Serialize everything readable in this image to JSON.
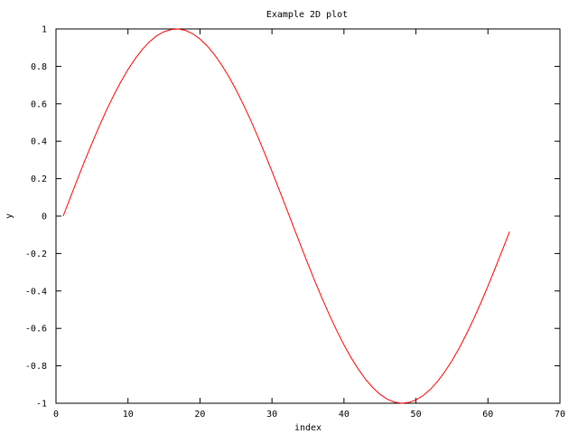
{
  "chart_data": {
    "type": "line",
    "title": "Example 2D plot",
    "xlabel": "index",
    "ylabel": "y",
    "xlim": [
      0,
      70
    ],
    "ylim": [
      -1,
      1
    ],
    "xticks": [
      0,
      10,
      20,
      30,
      40,
      50,
      60,
      70
    ],
    "xtick_labels": [
      "0",
      "10",
      "20",
      "30",
      "40",
      "50",
      "60",
      "70"
    ],
    "yticks": [
      -1,
      -0.8,
      -0.6,
      -0.4,
      -0.2,
      0,
      0.2,
      0.4,
      0.6,
      0.8,
      1
    ],
    "ytick_labels": [
      "-1",
      "-0.8",
      "-0.6",
      "-0.4",
      "-0.2",
      "0",
      "0.2",
      "0.4",
      "0.6",
      "0.8",
      "1"
    ],
    "grid": false,
    "legend": "none",
    "series": [
      {
        "color": "#ff0000",
        "x": [
          1,
          2,
          3,
          4,
          5,
          6,
          7,
          8,
          9,
          10,
          11,
          12,
          13,
          14,
          15,
          16,
          17,
          18,
          19,
          20,
          21,
          22,
          23,
          24,
          25,
          26,
          27,
          28,
          29,
          30,
          31,
          32,
          33,
          34,
          35,
          36,
          37,
          38,
          39,
          40,
          41,
          42,
          43,
          44,
          45,
          46,
          47,
          48,
          49,
          50,
          51,
          52,
          53,
          54,
          55,
          56,
          57,
          58,
          59,
          60,
          61,
          62,
          63
        ],
        "values": [
          0,
          0.1,
          0.199,
          0.296,
          0.389,
          0.479,
          0.565,
          0.644,
          0.717,
          0.783,
          0.841,
          0.891,
          0.932,
          0.964,
          0.985,
          0.997,
          1.0,
          0.992,
          0.974,
          0.946,
          0.909,
          0.863,
          0.808,
          0.746,
          0.675,
          0.598,
          0.516,
          0.427,
          0.335,
          0.239,
          0.141,
          0.042,
          -0.058,
          -0.158,
          -0.256,
          -0.351,
          -0.443,
          -0.53,
          -0.612,
          -0.688,
          -0.757,
          -0.818,
          -0.872,
          -0.916,
          -0.952,
          -0.978,
          -0.994,
          -1.0,
          -0.996,
          -0.982,
          -0.959,
          -0.926,
          -0.883,
          -0.832,
          -0.773,
          -0.706,
          -0.631,
          -0.551,
          -0.465,
          -0.374,
          -0.279,
          -0.182,
          -0.083
        ]
      }
    ]
  }
}
